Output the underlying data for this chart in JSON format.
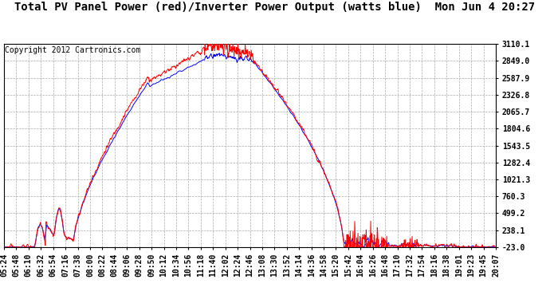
{
  "title": "Total PV Panel Power (red)/Inverter Power Output (watts blue)  Mon Jun 4 20:27",
  "copyright_text": "Copyright 2012 Cartronics.com",
  "y_ticks": [
    3110.1,
    2849.0,
    2587.9,
    2326.8,
    2065.7,
    1804.6,
    1543.5,
    1282.4,
    1021.3,
    760.3,
    499.2,
    238.1,
    -23.0
  ],
  "x_labels": [
    "05:24",
    "05:48",
    "06:10",
    "06:32",
    "06:54",
    "07:16",
    "07:38",
    "08:00",
    "08:22",
    "08:44",
    "09:06",
    "09:28",
    "09:50",
    "10:12",
    "10:34",
    "10:56",
    "11:18",
    "11:40",
    "12:02",
    "12:24",
    "12:46",
    "13:08",
    "13:30",
    "13:52",
    "14:14",
    "14:36",
    "14:58",
    "15:20",
    "15:42",
    "16:04",
    "16:26",
    "16:48",
    "17:10",
    "17:32",
    "17:54",
    "18:16",
    "18:38",
    "19:01",
    "19:23",
    "19:45",
    "20:07"
  ],
  "ylim_min": -23.0,
  "ylim_max": 3110.1,
  "background_color": "#ffffff",
  "plot_bg_color": "#ffffff",
  "grid_color": "#aaaaaa",
  "red_line_color": "#ff0000",
  "blue_line_color": "#0000ff",
  "title_fontsize": 10,
  "tick_fontsize": 7,
  "copyright_fontsize": 7,
  "peak_red": 3100,
  "peak_blue": 2980,
  "n_points": 1200
}
